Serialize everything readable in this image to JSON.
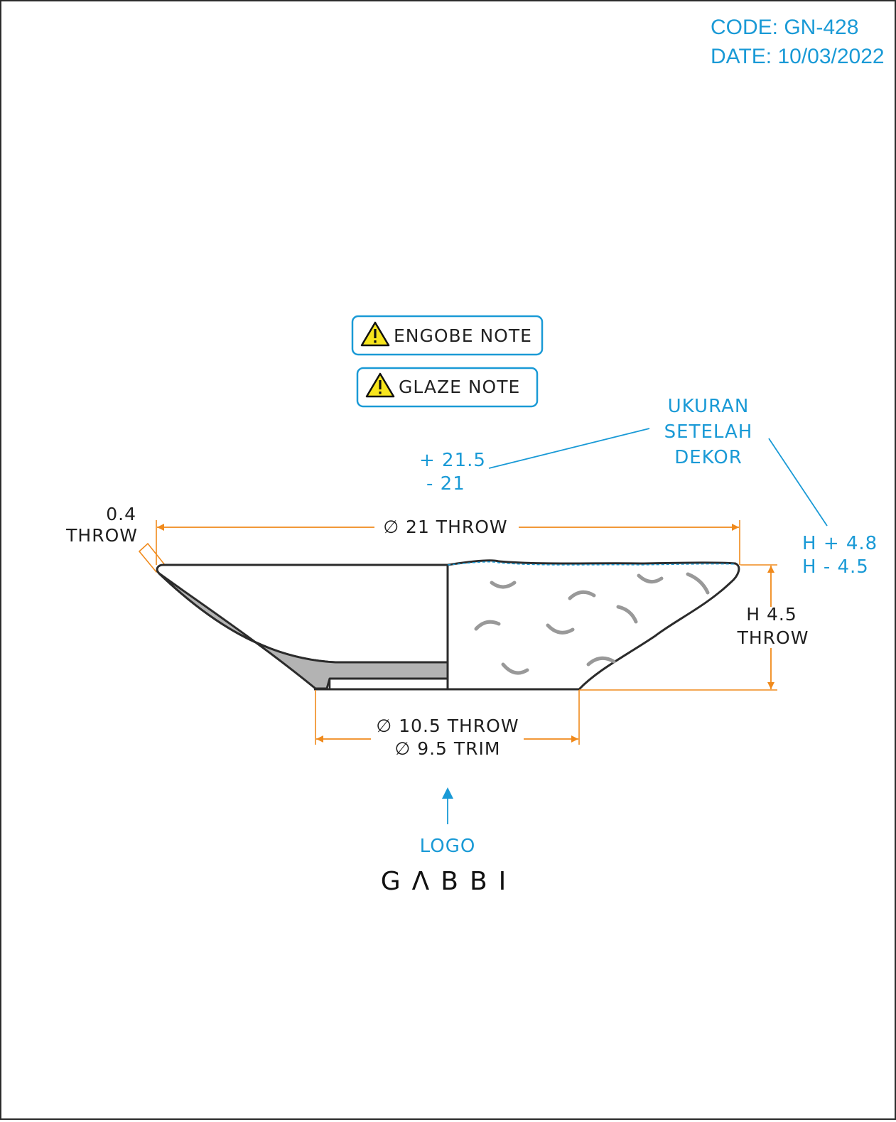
{
  "header": {
    "code": "CODE: GN-428",
    "date": "DATE: 10/03/2022"
  },
  "notes": [
    {
      "label": "ENGOBE NOTE",
      "icon": "warning-icon"
    },
    {
      "label": "GLAZE NOTE",
      "icon": "warning-icon"
    }
  ],
  "after_decor": {
    "label_lines": [
      "UKURAN",
      "SETELAH",
      "DEKOR"
    ],
    "diameter_plus": "+ 21.5",
    "diameter_minus": "- 21",
    "height_plus": "H + 4.8",
    "height_minus": "H - 4.5"
  },
  "dimensions": {
    "rim_thickness": [
      "0.4",
      "THROW"
    ],
    "top_diameter": "∅ 21 THROW",
    "height": [
      "H 4.5",
      "THROW"
    ],
    "base_throw": "∅ 10.5 THROW",
    "base_trim": "∅ 9.5 TRIM"
  },
  "logo": {
    "label": "LOGO",
    "brand": "GΛBBI"
  },
  "colors": {
    "accent_blue": "#1a9ad6",
    "dimension_orange": "#f08a1c",
    "outline": "#2b2b2b",
    "section_fill": "#b3b3b3",
    "decor_marks": "#999999",
    "warning_yellow": "#f7e51d"
  }
}
